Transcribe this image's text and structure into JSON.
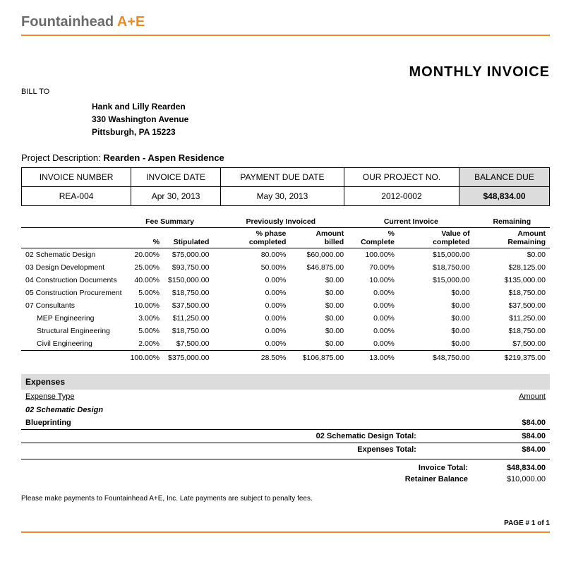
{
  "company": {
    "name_main": "Fountainhead ",
    "name_accent": "A+E"
  },
  "title": "MONTHLY INVOICE",
  "bill_to": {
    "label": "BILL TO",
    "name": "Hank and Lilly Rearden",
    "street": "330 Washington Avenue",
    "city_line": "Pittsburgh,  PA  15223"
  },
  "project": {
    "label": "Project Description: ",
    "value": "Rearden - Aspen Residence"
  },
  "meta": {
    "headers": [
      "INVOICE NUMBER",
      "INVOICE DATE",
      "PAYMENT DUE DATE",
      "OUR PROJECT NO.",
      "BALANCE DUE"
    ],
    "values": [
      "REA-004",
      "Apr 30, 2013",
      "May 30, 2013",
      "2012-0002",
      "$48,834.00"
    ]
  },
  "line_groups": {
    "g1": "Fee Summary",
    "g2": "Previously Invoiced",
    "g3": "Current Invoice",
    "g4": "Remaining",
    "h1": "%",
    "h2": "Stipulated",
    "h3": "% phase completed",
    "h4": "Amount billed",
    "h5": "% Complete",
    "h6": "Value of completed",
    "h7": "Amount Remaining"
  },
  "lines": [
    {
      "desc": "02 Schematic Design",
      "indent": false,
      "pct": "20.00%",
      "stip": "$75,000.00",
      "phc": "80.00%",
      "ab": "$60,000.00",
      "pc": "100.00%",
      "voc": "$15,000.00",
      "rem": "$0.00"
    },
    {
      "desc": "03 Design Development",
      "indent": false,
      "pct": "25.00%",
      "stip": "$93,750.00",
      "phc": "50.00%",
      "ab": "$46,875.00",
      "pc": "70.00%",
      "voc": "$18,750.00",
      "rem": "$28,125.00"
    },
    {
      "desc": "04 Construction Documents",
      "indent": false,
      "pct": "40.00%",
      "stip": "$150,000.00",
      "phc": "0.00%",
      "ab": "$0.00",
      "pc": "10.00%",
      "voc": "$15,000.00",
      "rem": "$135,000.00"
    },
    {
      "desc": "05 Construction Procurement",
      "indent": false,
      "pct": "5.00%",
      "stip": "$18,750.00",
      "phc": "0.00%",
      "ab": "$0.00",
      "pc": "0.00%",
      "voc": "$0.00",
      "rem": "$18,750.00"
    },
    {
      "desc": "07 Consultants",
      "indent": false,
      "pct": "10.00%",
      "stip": "$37,500.00",
      "phc": "0.00%",
      "ab": "$0.00",
      "pc": "0.00%",
      "voc": "$0.00",
      "rem": "$37,500.00"
    },
    {
      "desc": "MEP Engineering",
      "indent": true,
      "pct": "3.00%",
      "stip": "$11,250.00",
      "phc": "0.00%",
      "ab": "$0.00",
      "pc": "0.00%",
      "voc": "$0.00",
      "rem": "$11,250.00"
    },
    {
      "desc": "Structural Engineering",
      "indent": true,
      "pct": "5.00%",
      "stip": "$18,750.00",
      "phc": "0.00%",
      "ab": "$0.00",
      "pc": "0.00%",
      "voc": "$0.00",
      "rem": "$18,750.00"
    },
    {
      "desc": "Civil Engineering",
      "indent": true,
      "pct": "2.00%",
      "stip": "$7,500.00",
      "phc": "0.00%",
      "ab": "$0.00",
      "pc": "0.00%",
      "voc": "$0.00",
      "rem": "$7,500.00"
    }
  ],
  "line_totals": {
    "pct": "100.00%",
    "stip": "$375,000.00",
    "phc": "28.50%",
    "ab": "$106,875.00",
    "pc": "13.00%",
    "voc": "$48,750.00",
    "rem": "$219,375.00"
  },
  "expenses": {
    "section": "Expenses",
    "type_hdr": "Expense Type",
    "amount_hdr": "Amount",
    "group": "02 Schematic Design",
    "item": "Blueprinting",
    "item_amt": "$84.00",
    "group_total_label": "02 Schematic Design Total:",
    "group_total_amt": "$84.00",
    "exp_total_label": "Expenses Total:",
    "exp_total_amt": "$84.00"
  },
  "totals": {
    "invoice_label": "Invoice Total:",
    "invoice_amt": "$48,834.00",
    "retainer_label": "Retainer Balance",
    "retainer_amt": "$10,000.00"
  },
  "footnote": "Please make payments to Fountainhead A+E, Inc. Late payments are subject to penalty fees.",
  "page": "PAGE # 1 of 1",
  "colors": {
    "accent": "#e88a2a",
    "shade": "#dcdcdc"
  }
}
